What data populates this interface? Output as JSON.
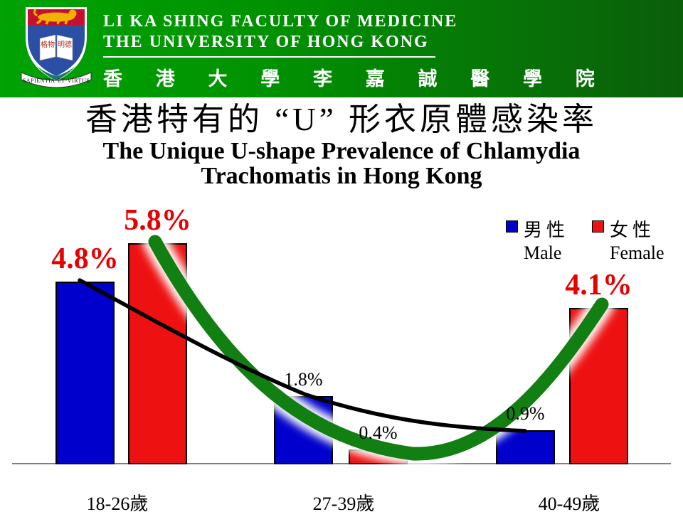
{
  "header": {
    "faculty_en": "LI KA SHING FACULTY OF MEDICINE",
    "university_en": "THE UNIVERSITY OF HONG KONG",
    "name_cjk": "香 港 大 學 李 嘉 誠 醫 學 院",
    "crest_motto": "SAPIENTIA·ET·VIRTUS",
    "crest_book_left": "格物",
    "crest_book_right": "明德"
  },
  "title": {
    "cjk": "香港特有的 “U” 形衣原體感染率",
    "en_line1": "The Unique U-shape Prevalence of Chlamydia",
    "en_line2": "Trachomatis in Hong Kong"
  },
  "legend": {
    "male_cjk": "男性",
    "male_en": "Male",
    "female_cjk": "女性",
    "female_en": "Female"
  },
  "chart_data": {
    "type": "bar",
    "categories": [
      "18-26歲",
      "27-39歲",
      "40-49歲"
    ],
    "series": [
      {
        "name": "男性 Male",
        "color": "#0000CC",
        "values": [
          4.8,
          1.8,
          0.9
        ],
        "labels": [
          "4.8%",
          "1.8%",
          "0.9%"
        ],
        "emphasized": [
          true,
          false,
          false
        ]
      },
      {
        "name": "女性 Female",
        "color": "#EE1111",
        "values": [
          5.8,
          0.4,
          4.1
        ],
        "labels": [
          "5.8%",
          "0.4%",
          "4.1%"
        ],
        "emphasized": [
          true,
          false,
          true
        ]
      }
    ],
    "ylim": [
      0,
      6
    ],
    "unit": "%",
    "grid": false,
    "legend_position": "top-right",
    "annotations": [
      {
        "name": "u-shape-trend-curve",
        "follows_series": "女性 Female",
        "shape": "thick U-shaped curve",
        "color": "#117F11"
      },
      {
        "name": "male-decline-trend-curve",
        "follows_series": "男性 Male",
        "shape": "thin declining curve",
        "color": "#000000"
      }
    ]
  },
  "colors": {
    "male_bar": "#0000CC",
    "female_bar": "#EE1111",
    "trend_green": "#117F11",
    "trend_black": "#000000",
    "label_red": "#E60000",
    "axis_gray": "#7F7F7F",
    "header_green_left": "#00A303",
    "header_green_right": "#0A5E0A"
  }
}
